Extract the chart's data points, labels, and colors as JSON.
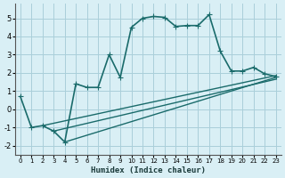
{
  "xlabel": "Humidex (Indice chaleur)",
  "bg_color": "#d9eff5",
  "grid_color": "#aacfda",
  "line_color": "#1a6b6b",
  "xlim": [
    -0.5,
    23.5
  ],
  "ylim": [
    -2.5,
    5.8
  ],
  "xticks": [
    0,
    1,
    2,
    3,
    4,
    5,
    6,
    7,
    8,
    9,
    10,
    11,
    12,
    13,
    14,
    15,
    16,
    17,
    18,
    19,
    20,
    21,
    22,
    23
  ],
  "yticks": [
    -2,
    -1,
    0,
    1,
    2,
    3,
    4,
    5
  ],
  "series": [
    {
      "x": [
        0,
        1,
        2,
        3,
        4,
        5,
        6,
        7,
        8,
        9,
        10,
        11,
        12,
        13,
        14,
        15,
        16,
        17,
        18,
        19,
        20,
        21,
        22,
        23
      ],
      "y": [
        0.7,
        -1.0,
        -0.9,
        -1.2,
        -1.8,
        1.4,
        1.2,
        1.2,
        3.0,
        1.75,
        4.5,
        5.0,
        5.1,
        5.05,
        4.55,
        4.6,
        4.6,
        5.2,
        3.2,
        2.1,
        2.1,
        2.3,
        1.95,
        1.8
      ],
      "marker": "+",
      "markersize": 5,
      "linewidth": 1.2
    },
    {
      "x": [
        2,
        23
      ],
      "y": [
        -0.9,
        1.85
      ],
      "marker": "",
      "markersize": 0,
      "linewidth": 1.0
    },
    {
      "x": [
        4,
        23
      ],
      "y": [
        -1.8,
        1.75
      ],
      "marker": "",
      "markersize": 0,
      "linewidth": 1.0
    },
    {
      "x": [
        3,
        23
      ],
      "y": [
        -1.2,
        1.65
      ],
      "marker": "",
      "markersize": 0,
      "linewidth": 1.0
    }
  ]
}
